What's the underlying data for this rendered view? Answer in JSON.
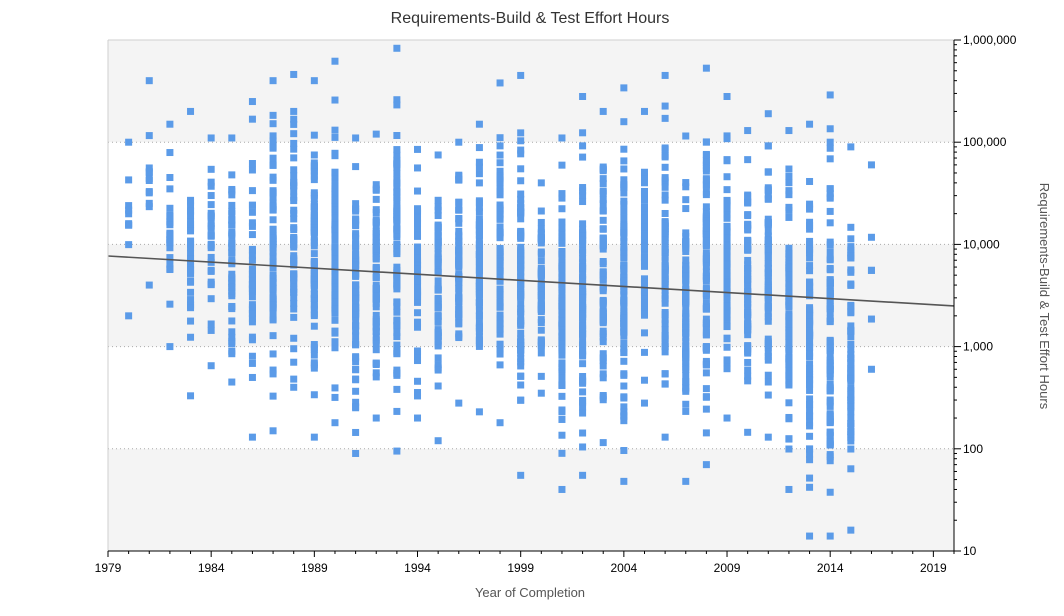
{
  "chart_data": {
    "type": "scatter",
    "title": "Requirements-Build & Test Effort Hours",
    "xlabel": "Year of Completion",
    "ylabel": "Requirements-Build & Test Effort Hours",
    "xlim": [
      1979,
      2020
    ],
    "ylim": [
      10,
      1000000
    ],
    "y_scale": "log",
    "x_ticks": [
      1979,
      1984,
      1989,
      1994,
      1999,
      2004,
      2009,
      2014,
      2019
    ],
    "x_tick_labels": [
      "1979",
      "1984",
      "1989",
      "1994",
      "1999",
      "2004",
      "2009",
      "2014",
      "2019"
    ],
    "y_ticks": [
      10,
      100,
      1000,
      10000,
      100000,
      1000000
    ],
    "y_tick_labels": [
      "10",
      "100",
      "1,000",
      "10,000",
      "100,000",
      "1,000,000"
    ],
    "grid": "horizontal dotted at decades, alternating light bands",
    "legend": "none",
    "colors": {
      "points": "#5b9be8",
      "trend": "#555555",
      "band": "#f4f4f4",
      "axis": "#000000",
      "title": "#333333",
      "label": "#444444"
    },
    "trend_line": {
      "x": [
        1979,
        2020
      ],
      "y": [
        7700,
        2500
      ]
    },
    "points_by_year": [
      {
        "year": 1980,
        "lo": 2000,
        "hi": 100000,
        "n": 10
      },
      {
        "year": 1981,
        "lo": 4000,
        "hi": 400000,
        "n": 12
      },
      {
        "year": 1982,
        "lo": 1000,
        "hi": 150000,
        "n": 25
      },
      {
        "year": 1983,
        "lo": 330,
        "hi": 200000,
        "n": 35
      },
      {
        "year": 1984,
        "lo": 650,
        "hi": 110000,
        "n": 30
      },
      {
        "year": 1985,
        "lo": 450,
        "hi": 110000,
        "n": 45
      },
      {
        "year": 1986,
        "lo": 130,
        "hi": 250000,
        "n": 40
      },
      {
        "year": 1987,
        "lo": 150,
        "hi": 400000,
        "n": 70
      },
      {
        "year": 1988,
        "lo": 400,
        "hi": 460000,
        "n": 55
      },
      {
        "year": 1989,
        "lo": 130,
        "hi": 400000,
        "n": 80
      },
      {
        "year": 1990,
        "lo": 180,
        "hi": 620000,
        "n": 85
      },
      {
        "year": 1991,
        "lo": 90,
        "hi": 110000,
        "n": 80
      },
      {
        "year": 1992,
        "lo": 200,
        "hi": 120000,
        "n": 70
      },
      {
        "year": 1993,
        "lo": 95,
        "hi": 830000,
        "n": 75
      },
      {
        "year": 1994,
        "lo": 200,
        "hi": 85000,
        "n": 70
      },
      {
        "year": 1995,
        "lo": 120,
        "hi": 75000,
        "n": 70
      },
      {
        "year": 1996,
        "lo": 280,
        "hi": 100000,
        "n": 70
      },
      {
        "year": 1997,
        "lo": 230,
        "hi": 150000,
        "n": 70
      },
      {
        "year": 1998,
        "lo": 180,
        "hi": 380000,
        "n": 75
      },
      {
        "year": 1999,
        "lo": 55,
        "hi": 450000,
        "n": 80
      },
      {
        "year": 2000,
        "lo": 350,
        "hi": 40000,
        "n": 55
      },
      {
        "year": 2001,
        "lo": 40,
        "hi": 110000,
        "n": 80
      },
      {
        "year": 2002,
        "lo": 55,
        "hi": 280000,
        "n": 75
      },
      {
        "year": 2003,
        "lo": 115,
        "hi": 200000,
        "n": 70
      },
      {
        "year": 2004,
        "lo": 48,
        "hi": 340000,
        "n": 85
      },
      {
        "year": 2005,
        "lo": 280,
        "hi": 200000,
        "n": 70
      },
      {
        "year": 2006,
        "lo": 130,
        "hi": 450000,
        "n": 80
      },
      {
        "year": 2007,
        "lo": 48,
        "hi": 115000,
        "n": 80
      },
      {
        "year": 2008,
        "lo": 70,
        "hi": 530000,
        "n": 90
      },
      {
        "year": 2009,
        "lo": 200,
        "hi": 280000,
        "n": 75
      },
      {
        "year": 2010,
        "lo": 145,
        "hi": 130000,
        "n": 70
      },
      {
        "year": 2011,
        "lo": 130,
        "hi": 190000,
        "n": 70
      },
      {
        "year": 2012,
        "lo": 40,
        "hi": 130000,
        "n": 80
      },
      {
        "year": 2013,
        "lo": 14,
        "hi": 150000,
        "n": 85
      },
      {
        "year": 2014,
        "lo": 14,
        "hi": 290000,
        "n": 95
      },
      {
        "year": 2015,
        "lo": 16,
        "hi": 90000,
        "n": 60
      },
      {
        "year": 2016,
        "lo": 600,
        "hi": 60000,
        "n": 6
      }
    ]
  }
}
